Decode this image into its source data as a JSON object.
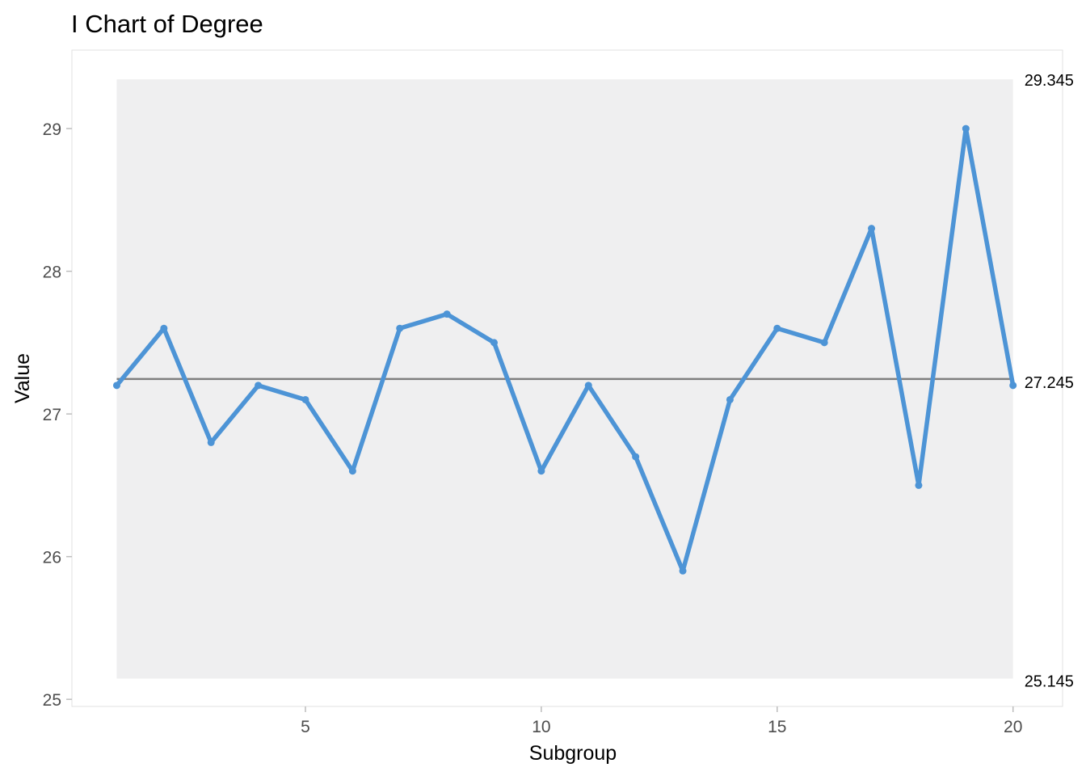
{
  "chart_data": {
    "type": "line",
    "title": "I Chart of Degree",
    "xlabel": "Subgroup",
    "ylabel": "Value",
    "xlim": [
      0.05,
      21.05
    ],
    "ylim": [
      24.95,
      29.55
    ],
    "x_ticks": [
      5,
      10,
      15,
      20
    ],
    "y_ticks": [
      25,
      26,
      27,
      28,
      29
    ],
    "x": [
      1,
      2,
      3,
      4,
      5,
      6,
      7,
      8,
      9,
      10,
      11,
      12,
      13,
      14,
      15,
      16,
      17,
      18,
      19,
      20
    ],
    "values": [
      27.2,
      27.6,
      26.8,
      27.2,
      27.1,
      26.6,
      27.6,
      27.7,
      27.5,
      26.6,
      27.2,
      26.7,
      25.9,
      27.1,
      27.6,
      27.5,
      28.3,
      26.5,
      29.0,
      27.2
    ],
    "center_line": {
      "value": 27.245,
      "label": "27.245"
    },
    "upper_control_limit": {
      "value": 29.345,
      "label": "29.345"
    },
    "lower_control_limit": {
      "value": 25.145,
      "label": "25.145"
    },
    "colors": {
      "series": "#4d94d6",
      "center_line": "#7f7f7f",
      "limit_band": "#efeff0",
      "panel_border": "#e0e0e0",
      "axis_text": "#4d4d4d"
    },
    "grid": false
  }
}
